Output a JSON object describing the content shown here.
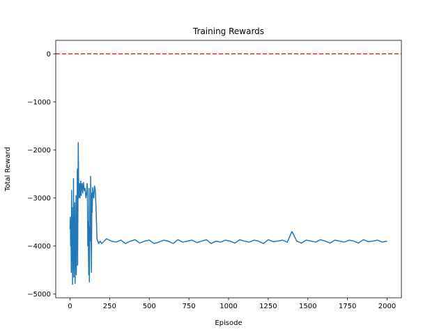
{
  "chart_data": {
    "type": "line",
    "title": "Training Rewards",
    "xlabel": "Episode",
    "ylabel": "Total Reward",
    "xlim": [
      -90,
      2090
    ],
    "ylim": [
      -5080,
      280
    ],
    "xticks": [
      0,
      250,
      500,
      750,
      1000,
      1250,
      1500,
      1750,
      2000
    ],
    "yticks": [
      -5000,
      -4000,
      -3000,
      -2000,
      -1000,
      0
    ],
    "ytick_labels": [
      "−5000",
      "−4000",
      "−3000",
      "−2000",
      "−1000",
      "0"
    ],
    "grid": false,
    "series": [
      {
        "color": "#1f77b4",
        "x": [
          0,
          2,
          4,
          6,
          8,
          10,
          12,
          14,
          16,
          18,
          20,
          22,
          24,
          26,
          28,
          30,
          32,
          34,
          36,
          38,
          40,
          42,
          44,
          46,
          48,
          50,
          52,
          55,
          58,
          60,
          63,
          65,
          68,
          70,
          73,
          76,
          80,
          85,
          90,
          95,
          100,
          105,
          108,
          110,
          112,
          115,
          118,
          120,
          122,
          125,
          128,
          130,
          132,
          135,
          138,
          140,
          143,
          146,
          150,
          155,
          160,
          165,
          170,
          175,
          180,
          185,
          190,
          200,
          230,
          260,
          290,
          320,
          350,
          380,
          410,
          440,
          470,
          500,
          530,
          560,
          590,
          620,
          650,
          680,
          710,
          740,
          770,
          800,
          830,
          860,
          890,
          920,
          950,
          980,
          1010,
          1040,
          1070,
          1100,
          1130,
          1160,
          1190,
          1220,
          1250,
          1280,
          1310,
          1340,
          1370,
          1400,
          1430,
          1460,
          1490,
          1520,
          1550,
          1580,
          1610,
          1640,
          1670,
          1700,
          1730,
          1760,
          1790,
          1820,
          1850,
          1880,
          1910,
          1940,
          1970,
          2000
        ],
        "values": [
          -3650,
          -3400,
          -4000,
          -3500,
          -4550,
          -2850,
          -4300,
          -3200,
          -4800,
          -3700,
          -4500,
          -2600,
          -4650,
          -3500,
          -4200,
          -3100,
          -4780,
          -3700,
          -4450,
          -2950,
          -4600,
          -3300,
          -4100,
          -2400,
          -4400,
          -3200,
          -1850,
          -3000,
          -2900,
          -2700,
          -3000,
          -2850,
          -2650,
          -2950,
          -2750,
          -2700,
          -2900,
          -2680,
          -2850,
          -2800,
          -3000,
          -2900,
          -2700,
          -2850,
          -4000,
          -3500,
          -4600,
          -2800,
          -4750,
          -3600,
          -3900,
          -2550,
          -3200,
          -4550,
          -2900,
          -3300,
          -2780,
          -2900,
          -3000,
          -2750,
          -2850,
          -3300,
          -3850,
          -3900,
          -3950,
          -3920,
          -3900,
          -3950,
          -3850,
          -3900,
          -3920,
          -3880,
          -3950,
          -3900,
          -3870,
          -3940,
          -3900,
          -3880,
          -3950,
          -3920,
          -3880,
          -3900,
          -3950,
          -3870,
          -3920,
          -3900,
          -3880,
          -3930,
          -3900,
          -3870,
          -3950,
          -3900,
          -3920,
          -3880,
          -3900,
          -3940,
          -3870,
          -3900,
          -3920,
          -3880,
          -3900,
          -3950,
          -3870,
          -3910,
          -3900,
          -3880,
          -3920,
          -3700,
          -3900,
          -3940,
          -3880,
          -3900,
          -3920,
          -3870,
          -3900,
          -3940,
          -3880,
          -3900,
          -3920,
          -3880,
          -3900,
          -3940,
          -3870,
          -3910,
          -3900,
          -3880,
          -3920,
          -3900
        ]
      },
      {
        "type": "hline",
        "y": 0,
        "color": "#d62728",
        "linestyle": "dashed"
      }
    ]
  }
}
